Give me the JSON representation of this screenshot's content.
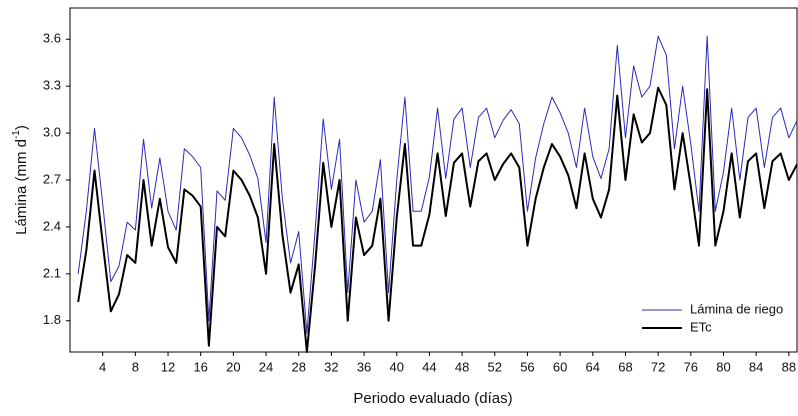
{
  "chart_data": {
    "type": "line",
    "xlabel": "Periodo evaluado (días)",
    "ylabel": {
      "text": "Lámina (mm d",
      "superscript": "-1",
      "close": ")"
    },
    "x": [
      1,
      2,
      3,
      4,
      5,
      6,
      7,
      8,
      9,
      10,
      11,
      12,
      13,
      14,
      15,
      16,
      17,
      18,
      19,
      20,
      21,
      22,
      23,
      24,
      25,
      26,
      27,
      28,
      29,
      30,
      31,
      32,
      33,
      34,
      35,
      36,
      37,
      38,
      39,
      40,
      41,
      42,
      43,
      44,
      45,
      46,
      47,
      48,
      49,
      50,
      51,
      52,
      53,
      54,
      55,
      56,
      57,
      58,
      59,
      60,
      61,
      62,
      63,
      64,
      65,
      66,
      67,
      68,
      69,
      70,
      71,
      72,
      73,
      74,
      75,
      76,
      77,
      78,
      79,
      80,
      81,
      82,
      83,
      84,
      85,
      86,
      87,
      88,
      89
    ],
    "series": [
      {
        "name": "Lámina de riego",
        "color": "#2b2bb8",
        "width": 1,
        "values": [
          2.1,
          2.5,
          3.03,
          2.55,
          2.05,
          2.15,
          2.43,
          2.38,
          2.96,
          2.52,
          2.84,
          2.5,
          2.38,
          2.9,
          2.85,
          2.78,
          1.8,
          2.63,
          2.57,
          3.03,
          2.97,
          2.86,
          2.71,
          2.3,
          3.23,
          2.58,
          2.17,
          2.37,
          1.72,
          2.37,
          3.09,
          2.64,
          2.96,
          1.98,
          2.7,
          2.43,
          2.5,
          2.83,
          1.98,
          2.7,
          3.23,
          2.5,
          2.5,
          2.72,
          3.16,
          2.71,
          3.09,
          3.16,
          2.78,
          3.1,
          3.16,
          2.97,
          3.08,
          3.15,
          3.06,
          2.5,
          2.84,
          3.06,
          3.23,
          3.13,
          3.0,
          2.78,
          3.16,
          2.85,
          2.71,
          2.9,
          3.56,
          2.97,
          3.43,
          3.23,
          3.3,
          3.62,
          3.5,
          2.9,
          3.3,
          2.93,
          2.5,
          3.62,
          2.5,
          2.75,
          3.16,
          2.7,
          3.1,
          3.16,
          2.78,
          3.1,
          3.16,
          2.97,
          3.08
        ]
      },
      {
        "name": "ETc",
        "color": "#000000",
        "width": 2,
        "values": [
          1.92,
          2.25,
          2.76,
          2.3,
          1.86,
          1.97,
          2.22,
          2.17,
          2.7,
          2.28,
          2.58,
          2.27,
          2.17,
          2.64,
          2.6,
          2.53,
          1.64,
          2.4,
          2.34,
          2.76,
          2.7,
          2.6,
          2.46,
          2.1,
          2.93,
          2.35,
          1.98,
          2.16,
          1.6,
          2.15,
          2.81,
          2.4,
          2.7,
          1.8,
          2.46,
          2.22,
          2.28,
          2.58,
          1.8,
          2.46,
          2.93,
          2.28,
          2.28,
          2.48,
          2.87,
          2.47,
          2.81,
          2.87,
          2.53,
          2.82,
          2.87,
          2.7,
          2.8,
          2.87,
          2.78,
          2.28,
          2.58,
          2.78,
          2.93,
          2.85,
          2.73,
          2.52,
          2.87,
          2.58,
          2.46,
          2.64,
          3.24,
          2.7,
          3.12,
          2.94,
          3.0,
          3.29,
          3.18,
          2.64,
          3.0,
          2.66,
          2.28,
          3.28,
          2.28,
          2.5,
          2.87,
          2.46,
          2.82,
          2.87,
          2.52,
          2.82,
          2.87,
          2.7,
          2.8
        ]
      }
    ],
    "xlim": [
      0,
      89
    ],
    "xticks": [
      4,
      8,
      12,
      16,
      20,
      24,
      28,
      32,
      36,
      40,
      44,
      48,
      52,
      56,
      60,
      64,
      68,
      72,
      76,
      80,
      84,
      88
    ],
    "ylim": [
      1.6,
      3.8
    ],
    "yticks": [
      1.8,
      2.1,
      2.4,
      2.7,
      {
        "value": 3,
        "label": "3.0"
      },
      3.3,
      3.6
    ],
    "legend": "lower right",
    "grid": false
  }
}
